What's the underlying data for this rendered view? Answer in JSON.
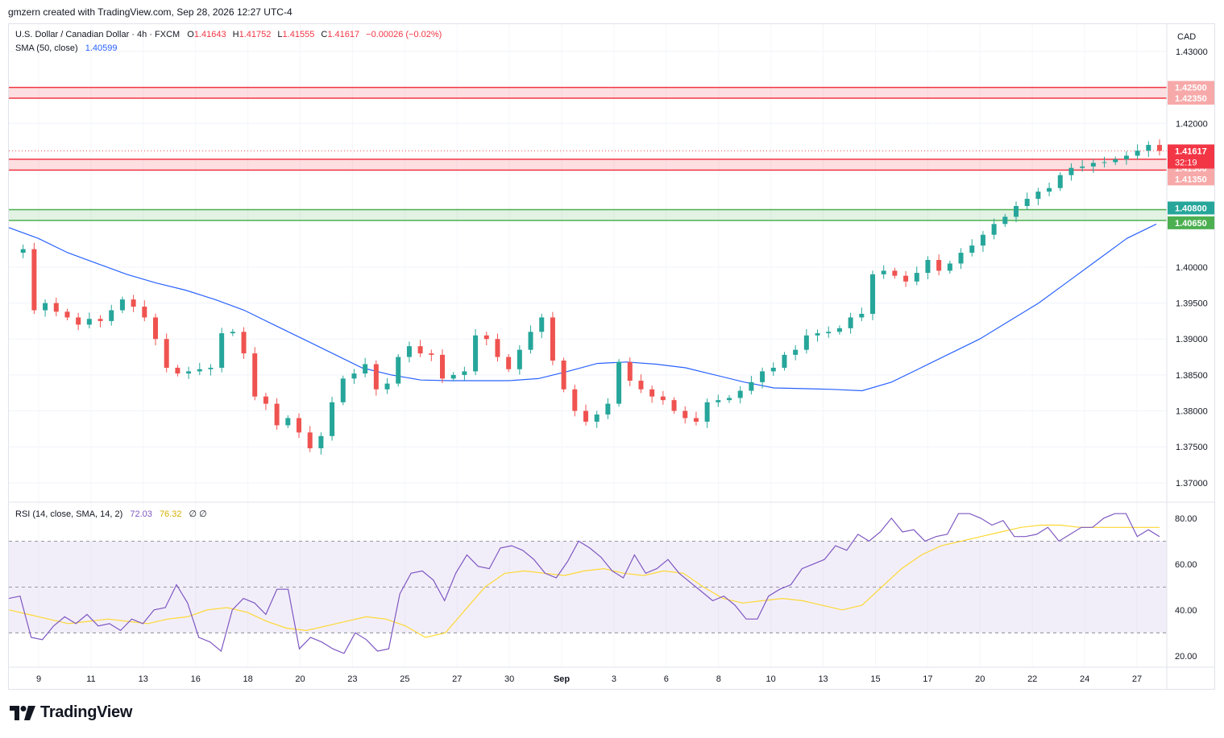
{
  "header": {
    "text": "gmzern created with TradingView.com, Sep 28, 2026 12:27 UTC-4"
  },
  "legend": {
    "symbol": "U.S. Dollar / Canadian Dollar · 4h · FXCM",
    "o_label": "O",
    "o_value": "1.41643",
    "h_label": "H",
    "h_value": "1.41752",
    "l_label": "L",
    "l_value": "1.41555",
    "c_label": "C",
    "c_value": "1.41617",
    "change": "−0.00026 (−0.02%)",
    "sma_label": "SMA (50, close)",
    "sma_value": "1.40599",
    "rsi_label": "RSI (14, close, SMA, 14, 2)",
    "rsi_value": "72.03",
    "rsi_ma_value": "76.32",
    "rsi_extra": "∅ ∅"
  },
  "axis": {
    "currency": "CAD",
    "price_ticks": [
      "1.43000",
      "1.42000",
      "1.40000",
      "1.39500",
      "1.39000",
      "1.38500",
      "1.38000",
      "1.37500",
      "1.37000"
    ],
    "rsi_ticks": [
      "80.00",
      "60.00",
      "40.00",
      "20.00"
    ],
    "date_ticks": [
      "9",
      "11",
      "13",
      "16",
      "18",
      "20",
      "23",
      "25",
      "27",
      "30",
      "Sep",
      "3",
      "6",
      "8",
      "10",
      "13",
      "15",
      "17",
      "20",
      "22",
      "24",
      "27"
    ]
  },
  "price_labels": {
    "zone_top_upper": "1.42500",
    "zone_top_lower": "1.42350",
    "last_price": "1.41617",
    "countdown": "32:19",
    "zone_mid_upper": "1.41500",
    "zone_mid_lower": "1.41350",
    "zone_green_upper": "1.40800",
    "zone_green_lower": "1.40650"
  },
  "footer": {
    "brand": "TradingView"
  },
  "colors": {
    "up": "#26a69a",
    "down": "#ef5350",
    "sma": "#2962ff",
    "rsi": "#7e57c2",
    "rsi_ma": "#fdd835",
    "zone_red": "#f23645",
    "zone_green": "#4caf50"
  },
  "chart_data": {
    "type": "candlestick",
    "symbol": "USDCAD",
    "timeframe": "4h",
    "y_range": [
      1.3673,
      1.4338
    ],
    "x_dates": [
      "9",
      "11",
      "13",
      "16",
      "18",
      "20",
      "23",
      "25",
      "27",
      "30",
      "Sep",
      "3",
      "6",
      "8",
      "10",
      "13",
      "15",
      "17",
      "20",
      "22",
      "24",
      "27"
    ],
    "zones": [
      {
        "upper": 1.425,
        "lower": 1.4235,
        "color": "red"
      },
      {
        "upper": 1.415,
        "lower": 1.4135,
        "color": "red"
      },
      {
        "upper": 1.408,
        "lower": 1.4065,
        "color": "green"
      }
    ],
    "price_path": [
      1.402,
      1.4025,
      1.394,
      1.395,
      1.3938,
      1.393,
      1.392,
      1.3928,
      1.3925,
      1.394,
      1.3955,
      1.3945,
      1.393,
      1.39,
      1.386,
      1.3852,
      1.3855,
      1.3858,
      1.386,
      1.3908,
      1.391,
      1.388,
      1.382,
      1.381,
      1.378,
      1.379,
      1.377,
      1.3748,
      1.3765,
      1.3812,
      1.3845,
      1.3852,
      1.3865,
      1.383,
      1.3838,
      1.3875,
      1.389,
      1.388,
      1.3878,
      1.3845,
      1.385,
      1.3855,
      1.3905,
      1.39,
      1.3875,
      1.3858,
      1.3885,
      1.391,
      1.393,
      1.387,
      1.383,
      1.38,
      1.3785,
      1.3795,
      1.381,
      1.3868,
      1.3842,
      1.383,
      1.382,
      1.3815,
      1.38,
      1.379,
      1.3785,
      1.3812,
      1.3815,
      1.3818,
      1.3828,
      1.384,
      1.3855,
      1.386,
      1.3878,
      1.3885,
      1.3905,
      1.3908,
      1.391,
      1.3915,
      1.393,
      1.3935,
      1.399,
      1.3995,
      1.3988,
      1.398,
      1.3992,
      1.401,
      1.3995,
      1.4005,
      1.402,
      1.403,
      1.4045,
      1.406,
      1.407,
      1.4085,
      1.4095,
      1.4105,
      1.411,
      1.4128,
      1.4138,
      1.414,
      1.4145,
      1.4146,
      1.415,
      1.4155,
      1.4162,
      1.417,
      1.41617
    ],
    "sma_path": [
      1.4055,
      1.404,
      1.402,
      1.4005,
      1.399,
      1.3978,
      1.3968,
      1.3955,
      1.394,
      1.392,
      1.39,
      1.388,
      1.386,
      1.385,
      1.3843,
      1.3842,
      1.3842,
      1.3842,
      1.3845,
      1.3855,
      1.3866,
      1.3868,
      1.3865,
      1.386,
      1.385,
      1.384,
      1.3832,
      1.3831,
      1.383,
      1.3828,
      1.384,
      1.386,
      1.388,
      1.39,
      1.3925,
      1.395,
      1.398,
      1.401,
      1.404,
      1.40599
    ],
    "rsi": {
      "y_range": [
        15,
        87
      ],
      "overbought": 70,
      "middle": 50,
      "oversold": 30,
      "values": [
        45,
        46,
        28,
        27,
        33,
        37,
        34,
        38,
        33,
        34,
        31,
        36,
        34,
        40,
        41,
        51,
        43,
        28,
        26,
        22,
        40,
        45,
        43,
        38,
        49,
        49,
        23,
        28,
        26,
        23,
        21,
        30,
        27,
        22,
        23,
        47,
        56,
        57,
        53,
        44,
        56,
        64,
        59,
        58,
        67,
        68,
        66,
        62,
        56,
        54,
        61,
        70,
        67,
        63,
        57,
        54,
        64,
        56,
        58,
        62,
        56,
        52,
        48,
        44,
        46,
        42,
        36,
        36,
        46,
        49,
        51,
        58,
        60,
        62,
        68,
        66,
        73,
        70,
        74,
        80,
        74,
        75,
        70,
        72,
        73,
        82,
        82,
        80,
        77,
        79,
        72,
        72,
        73,
        76,
        70,
        73,
        76,
        76,
        80,
        82,
        82,
        72,
        75,
        72
      ],
      "ma_values": [
        40,
        38,
        36,
        34,
        35,
        36,
        35,
        34,
        36,
        37,
        40,
        41,
        39,
        35,
        32,
        31,
        33,
        35,
        37,
        36,
        33,
        28,
        30,
        40,
        50,
        56,
        57,
        56,
        55,
        57,
        58,
        56,
        55,
        57,
        56,
        50,
        45,
        43,
        44,
        45,
        44,
        42,
        40,
        42,
        50,
        58,
        64,
        68,
        70,
        72,
        74,
        76,
        77,
        77,
        76,
        76,
        76,
        76,
        76
      ]
    }
  }
}
